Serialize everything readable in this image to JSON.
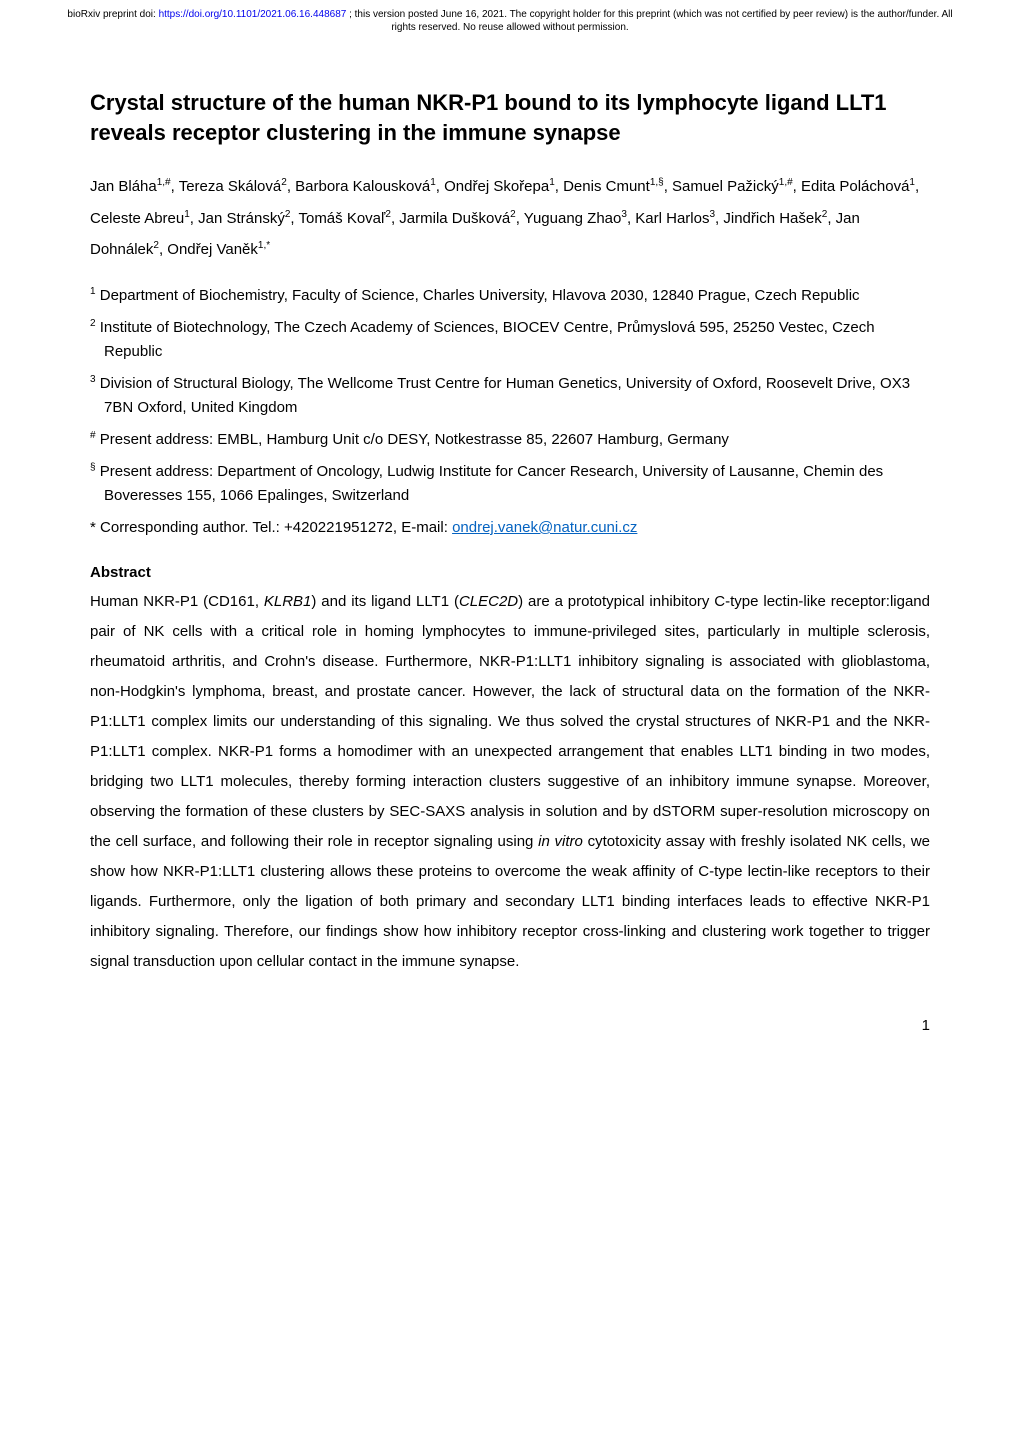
{
  "header": {
    "prefix": "bioRxiv preprint doi: ",
    "doi_url": "https://doi.org/10.1101/2021.06.16.448687",
    "suffix": "; this version posted June 16, 2021. The copyright holder for this preprint (which was not certified by peer review) is the author/funder. All rights reserved. No reuse allowed without permission."
  },
  "title": "Crystal structure of the human NKR-P1 bound to its lymphocyte ligand LLT1 reveals receptor clustering in the immune synapse",
  "authors_html": "Jan Bláha<sup>1,#</sup>, Tereza Skálová<sup>2</sup>, Barbora Kalousková<sup>1</sup>, Ondřej Skořepa<sup>1</sup>, Denis Cmunt<sup>1,§</sup>, Samuel Pažický<sup>1,#</sup>, Edita Poláchová<sup>1</sup>, Celeste Abreu<sup>1</sup>, Jan Stránský<sup>2</sup>, Tomáš Kovaľ<sup>2</sup>, Jarmila Dušková<sup>2</sup>, Yuguang Zhao<sup>3</sup>, Karl Harlos<sup>3</sup>, Jindřich Hašek<sup>2</sup>, Jan Dohnálek<sup>2</sup>, Ondřej Vaněk<sup>1,*</sup>",
  "affiliations": [
    {
      "marker": "1",
      "text": "Department of Biochemistry, Faculty of Science, Charles University, Hlavova 2030, 12840 Prague, Czech Republic"
    },
    {
      "marker": "2",
      "text": "Institute of Biotechnology, The Czech Academy of Sciences, BIOCEV Centre, Průmyslová 595, 25250 Vestec, Czech Republic"
    },
    {
      "marker": "3",
      "text": "Division of Structural Biology, The Wellcome Trust Centre for Human Genetics, University of Oxford, Roosevelt Drive, OX3 7BN Oxford, United Kingdom"
    },
    {
      "marker": "#",
      "text": "Present address: EMBL, Hamburg Unit c/o DESY, Notkestrasse 85, 22607 Hamburg, Germany"
    },
    {
      "marker": "§",
      "text": "Present address: Department of Oncology, Ludwig Institute for Cancer Research, University of Lausanne, Chemin des Boveresses 155, 1066 Epalinges, Switzerland"
    }
  ],
  "corresponding": {
    "marker": "*",
    "prefix": "Corresponding author. Tel.: +420221951272, E-mail: ",
    "email": "ondrej.vanek@natur.cuni.cz"
  },
  "abstract": {
    "heading": "Abstract",
    "text_html": "Human NKR-P1 (CD161, <em>KLRB1</em>) and its ligand LLT1 (<em>CLEC2D</em>) are a prototypical inhibitory C-type lectin-like receptor:ligand pair of NK cells with a critical role in homing lymphocytes to immune-privileged sites, particularly in multiple sclerosis, rheumatoid arthritis, and Crohn's disease. Furthermore, NKR-P1:LLT1 inhibitory signaling is associated with glioblastoma, non-Hodgkin's lymphoma, breast, and prostate cancer. However, the lack of structural data on the formation of the NKR-P1:LLT1 complex limits our understanding of this signaling. We thus solved the crystal structures of NKR-P1 and the NKR-P1:LLT1 complex. NKR-P1 forms a homodimer with an unexpected arrangement that enables LLT1 binding in two modes, bridging two LLT1 molecules, thereby forming interaction clusters suggestive of an inhibitory immune synapse. Moreover, observing the formation of these clusters by SEC-SAXS analysis in solution and by dSTORM super-resolution microscopy on the cell surface, and following their role in receptor signaling using <em>in vitro</em> cytotoxicity assay with freshly isolated NK cells, we show how NKR-P1:LLT1 clustering allows these proteins to overcome the weak affinity of C-type lectin-like receptors to their ligands. Furthermore, only the ligation of both primary and secondary LLT1 binding interfaces leads to effective NKR-P1 inhibitory signaling. Therefore, our findings show how inhibitory receptor cross-linking and clustering work together to trigger signal transduction upon cellular contact in the immune synapse."
  },
  "page_number": "1",
  "colors": {
    "background": "#ffffff",
    "text": "#000000",
    "link_header": "#0000ee",
    "link_email": "#0563c1"
  },
  "typography": {
    "header_fontsize": 10,
    "title_fontsize": 22,
    "body_fontsize": 15,
    "font_family": "Arial"
  }
}
